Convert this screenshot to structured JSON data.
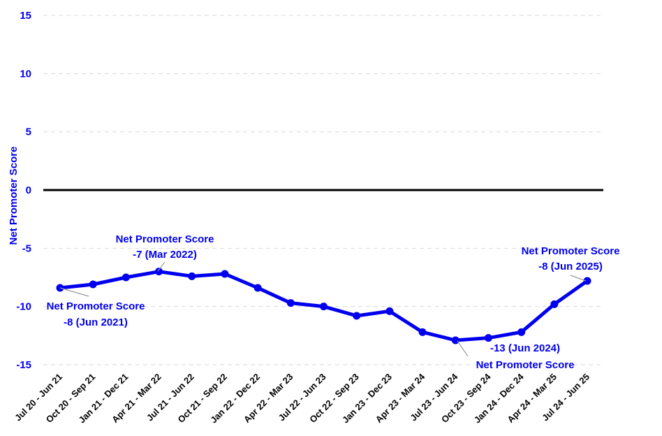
{
  "chart_data": {
    "type": "line",
    "ylabel": "Net Promoter Score",
    "xlabel": "",
    "title": "",
    "ylim": [
      -15,
      15
    ],
    "yticks": [
      15,
      10,
      5,
      0,
      -5,
      -10,
      -15
    ],
    "grid": true,
    "legend": "none",
    "colors": {
      "series": "#0000ee",
      "zero_line": "#000000",
      "grid": "#d9d9d9",
      "text": "#0000ee"
    },
    "categories": [
      "Jul 20 - Jun 21",
      "Oct 20 - Sep 21",
      "Jan 21 - Dec 21",
      "Apr 21 - Mar 22",
      "Jul 21 - Jun 22",
      "Oct 21 - Sep 22",
      "Jan 22 - Dec 22",
      "Apr 22 - Mar 23",
      "Jul 22 - Jun 23",
      "Oct 22 - Sep 23",
      "Jan 23 - Dec 23",
      "Apr 23 - Mar 24",
      "Jul 23 - Jun 24",
      "Oct 23 - Sep 24",
      "Jan 24 - Dec 24",
      "Apr 24 - Mar 25",
      "Jul 24 - Jun 25"
    ],
    "series": [
      {
        "values": [
          -8.4,
          -8.1,
          -7.5,
          -7.0,
          -7.4,
          -7.2,
          -8.4,
          -9.7,
          -10.0,
          -10.8,
          -10.4,
          -12.2,
          -12.9,
          -12.7,
          -12.2,
          -9.8,
          -7.8
        ]
      }
    ],
    "annotations": [
      {
        "index": 0,
        "line1": "Net Promoter Score",
        "line2": "-8 (Jun 2021)"
      },
      {
        "index": 3,
        "line1": "Net Promoter Score",
        "line2": "-7 (Mar 2022)"
      },
      {
        "index": 12,
        "line1": "-13 (Jun 2024)",
        "line2": "Net Promoter Score"
      },
      {
        "index": 16,
        "line1": "Net Promoter Score",
        "line2": "-8 (Jun 2025)"
      }
    ]
  }
}
